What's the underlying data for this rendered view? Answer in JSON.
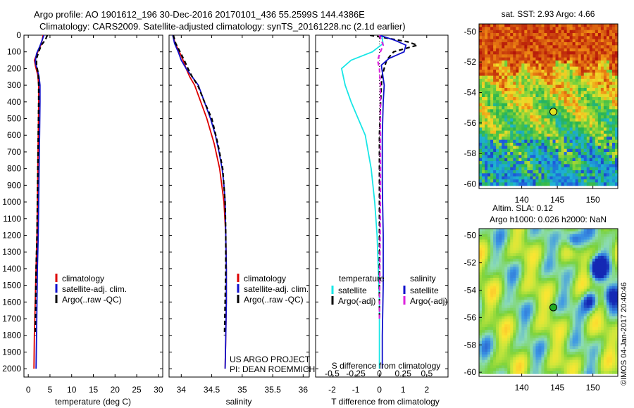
{
  "header": {
    "line1": "Argo profile: AO 1901612_196 30-Dec-2016 20170101_436 55.2599S 144.4386E",
    "line2": "Climatology: CARS2009. Satellite-adjusted climatology: synTS_20161228.nc (2.1d earlier)"
  },
  "credit": {
    "line1": "US ARGO PROJECT",
    "line2": "PI: DEAN ROEMMICH"
  },
  "footer": "©IMOS 04-Jan-2017 20:40:46",
  "colors": {
    "climatology": "#dd0000",
    "satellite": "#1010cc",
    "argo": "#000000",
    "sat_temp_diff": "#18e6e6",
    "sat_sal_diff": "#1010cc",
    "argo_sal_diff": "#dd22dd"
  },
  "chart_data": [
    {
      "type": "line",
      "xlabel": "temperature (deg C)",
      "ylabel": "",
      "xlim": [
        -1,
        31
      ],
      "ylim": [
        2050,
        0
      ],
      "xticks": [
        0,
        5,
        10,
        15,
        20,
        25,
        30
      ],
      "yticks": [
        0,
        100,
        200,
        300,
        400,
        500,
        600,
        700,
        800,
        900,
        1000,
        1100,
        1200,
        1300,
        1400,
        1500,
        1600,
        1700,
        1800,
        1900,
        2000
      ],
      "legend": [
        "climatology",
        "satellite-adj. clim.",
        "Argo(..raw -QC)"
      ],
      "legend_position": "lower-center",
      "series": [
        {
          "name": "climatology",
          "color": "#dd0000",
          "style": "solid",
          "x": [
            3.4,
            3.2,
            2.9,
            2.2,
            1.4,
            1.7,
            2.2,
            2.4,
            2.4,
            2.3,
            2.2,
            2.1,
            2.0,
            1.8,
            1.6,
            1.4,
            1.3
          ],
          "y": [
            0,
            30,
            60,
            100,
            150,
            190,
            240,
            300,
            400,
            600,
            800,
            1000,
            1200,
            1400,
            1600,
            1800,
            2000
          ]
        },
        {
          "name": "satellite-adj. clim.",
          "color": "#1010cc",
          "style": "solid",
          "x": [
            3.6,
            3.2,
            2.6,
            1.9,
            1.6,
            2.0,
            2.5,
            2.7,
            2.7,
            2.6,
            2.5,
            2.4,
            2.3,
            2.1,
            2.0,
            1.9,
            1.8
          ],
          "y": [
            0,
            30,
            70,
            110,
            160,
            200,
            250,
            300,
            400,
            600,
            800,
            1000,
            1200,
            1400,
            1600,
            1800,
            2000
          ]
        },
        {
          "name": "Argo(..raw -QC)",
          "color": "#000000",
          "style": "dashed",
          "x": [
            4.4,
            3.9,
            3.0,
            2.4,
            1.9,
            1.9,
            2.3,
            2.4,
            2.4,
            2.3,
            2.2,
            2.1,
            2.0,
            1.8,
            1.7,
            1.6
          ],
          "y": [
            0,
            30,
            60,
            100,
            140,
            180,
            230,
            300,
            400,
            600,
            800,
            1000,
            1200,
            1400,
            1600,
            1800
          ]
        }
      ]
    },
    {
      "type": "line",
      "xlabel": "salinity",
      "ylabel": "",
      "xlim": [
        33.8,
        36.1
      ],
      "ylim": [
        2050,
        0
      ],
      "xticks": [
        34,
        34.5,
        35,
        35.5,
        36
      ],
      "xticklabels": [
        "34",
        "34.5",
        "35",
        "35.5",
        "36"
      ],
      "legend": [
        "climatology",
        "satellite-adj. clim.",
        "Argo(..raw -QC)"
      ],
      "legend_position": "lower-center",
      "series": [
        {
          "name": "climatology",
          "color": "#dd0000",
          "style": "solid",
          "x": [
            33.86,
            33.9,
            33.97,
            34.03,
            34.08,
            34.14,
            34.22,
            34.32,
            34.42,
            34.54,
            34.63,
            34.7,
            34.73,
            34.74,
            34.74,
            34.73,
            34.72
          ],
          "y": [
            0,
            50,
            100,
            150,
            200,
            250,
            300,
            400,
            500,
            650,
            800,
            1000,
            1200,
            1400,
            1600,
            1800,
            2000
          ]
        },
        {
          "name": "satellite-adj. clim.",
          "color": "#1010cc",
          "style": "solid",
          "x": [
            33.86,
            33.89,
            33.95,
            34.0,
            34.08,
            34.18,
            34.28,
            34.38,
            34.48,
            34.56,
            34.62,
            34.67,
            34.7,
            34.72,
            34.73,
            34.74,
            34.74,
            34.73,
            34.72
          ],
          "y": [
            0,
            50,
            100,
            150,
            200,
            250,
            300,
            400,
            500,
            600,
            700,
            800,
            900,
            1000,
            1200,
            1400,
            1600,
            1800,
            2000
          ]
        },
        {
          "name": "Argo(..raw -QC)",
          "color": "#000000",
          "style": "dashed",
          "x": [
            33.87,
            33.91,
            33.98,
            34.05,
            34.11,
            34.18,
            34.27,
            34.38,
            34.5,
            34.6,
            34.68,
            34.72,
            34.73,
            34.73,
            34.72,
            34.71
          ],
          "y": [
            0,
            50,
            100,
            150,
            200,
            250,
            300,
            400,
            500,
            650,
            800,
            1000,
            1200,
            1400,
            1600,
            1800
          ]
        }
      ]
    },
    {
      "type": "line",
      "xlabel": "T difference from climatology",
      "x2label": "S difference from climatology",
      "ylabel": "",
      "xlim": [
        -2.7,
        2.9
      ],
      "ylim": [
        2050,
        0
      ],
      "xticks": [
        -2,
        -1,
        0,
        1,
        2
      ],
      "x2ticks": [
        -0.5,
        -0.25,
        0,
        0.25,
        0.5
      ],
      "x2ticklabels": [
        "-0.5",
        "-0.25",
        "0",
        "0.25",
        "0.5"
      ],
      "legend_temperature_title": "temperature",
      "legend_salinity_title": "salinity",
      "legend": [
        "satellite",
        "Argo(-adj)",
        "satellite",
        "Argo(-adj)"
      ],
      "legend_position": "lower-center",
      "series": [
        {
          "name": "satellite",
          "group": "temperature",
          "color": "#18e6e6",
          "style": "solid",
          "x": [
            0.1,
            0.15,
            -0.3,
            -1.2,
            -1.6,
            -1.45,
            -1.2,
            -0.9,
            -0.6,
            -0.35,
            -0.2,
            -0.1,
            -0.05,
            0.0,
            0.0,
            0.0
          ],
          "y": [
            0,
            50,
            100,
            150,
            200,
            300,
            400,
            500,
            600,
            800,
            1000,
            1200,
            1400,
            1600,
            1800,
            2000
          ]
        },
        {
          "name": "Argo(-adj)",
          "group": "temperature",
          "color": "#000000",
          "style": "dashed",
          "x": [
            -0.4,
            0.4,
            1.2,
            1.6,
            0.6,
            0.3,
            0.1,
            0.05,
            0.0,
            0.0,
            0.0
          ],
          "y": [
            0,
            20,
            40,
            60,
            100,
            150,
            250,
            400,
            600,
            1000,
            1700
          ]
        },
        {
          "name": "satellite",
          "group": "salinity",
          "color": "#1010cc",
          "style": "solid",
          "x": [
            0.0,
            0.16,
            0.28,
            0.26,
            0.1,
            0.02,
            0.03,
            0.05,
            0.04,
            0.03,
            0.03,
            0.04,
            0.04,
            0.03,
            0.03
          ],
          "y": [
            0,
            30,
            60,
            100,
            140,
            180,
            220,
            300,
            400,
            600,
            900,
            1200,
            1500,
            1800,
            2000
          ]
        },
        {
          "name": "Argo(-adj)",
          "group": "salinity",
          "color": "#dd22dd",
          "style": "dashed",
          "x": [
            0.0,
            0.02,
            0.04,
            0.01,
            -0.02,
            0.0,
            0.01,
            0.01,
            0.01,
            0.0
          ],
          "y": [
            0,
            30,
            60,
            100,
            150,
            200,
            300,
            600,
            1000,
            1700
          ]
        }
      ]
    },
    {
      "type": "heatmap",
      "title": "sat. SST: 2.93 Argo: 4.66",
      "xlim": [
        134,
        153.5
      ],
      "ylim": [
        -60.3,
        -49.5
      ],
      "xticks": [
        140,
        145,
        150
      ],
      "yticks": [
        -50,
        -52,
        -54,
        -56,
        -58,
        -60
      ],
      "marker": {
        "lon": 144.4386,
        "lat": -55.2599,
        "color": "#e0e020"
      }
    },
    {
      "type": "heatmap",
      "title": "Altim. SLA: 0.12",
      "subtitle": "Argo h1000: 0.026 h2000: NaN",
      "xlim": [
        134,
        153.5
      ],
      "ylim": [
        -60.3,
        -49.5
      ],
      "xticks": [
        140,
        145,
        150
      ],
      "yticks": [
        -50,
        -52,
        -54,
        -56,
        -58,
        -60
      ],
      "marker": {
        "lon": 144.4386,
        "lat": -55.2599,
        "color": "#22aa22"
      }
    }
  ]
}
